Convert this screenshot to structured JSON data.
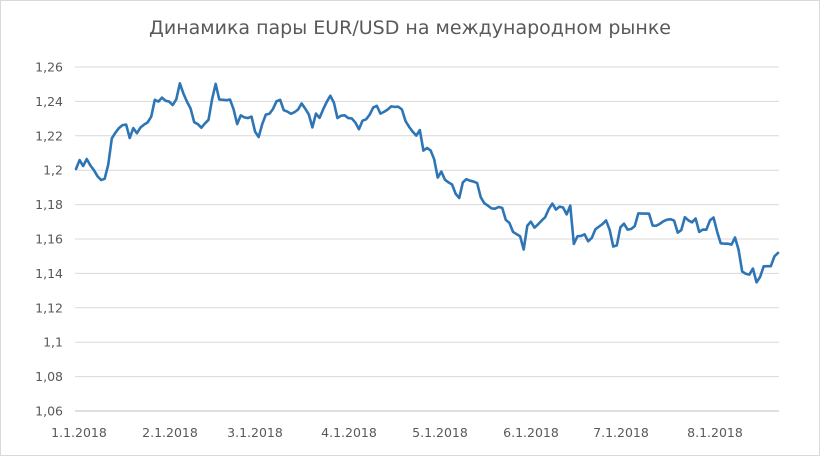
{
  "chart_data": {
    "type": "line",
    "title": "Динамика пары EUR/USD на международном рынке",
    "xlabel": "",
    "ylabel": "",
    "ylim": [
      1.06,
      1.26
    ],
    "y_ticks": [
      "1,26",
      "1,24",
      "1,22",
      "1,2",
      "1,18",
      "1,16",
      "1,14",
      "1,12",
      "1,1",
      "1,08",
      "1,06"
    ],
    "y_tick_values": [
      1.26,
      1.24,
      1.22,
      1.2,
      1.18,
      1.16,
      1.14,
      1.12,
      1.1,
      1.08,
      1.06
    ],
    "x_ticks": [
      "1.1.2018",
      "2.1.2018",
      "3.1.2018",
      "4.1.2018",
      "5.1.2018",
      "6.1.2018",
      "7.1.2018",
      "8.1.2018"
    ],
    "grid": "horizontal",
    "legend": "none",
    "line_color": "#2E75B6",
    "series": [
      {
        "values": [
          1.2007,
          1.2059,
          1.2024,
          1.2065,
          1.2028,
          1.2,
          1.1965,
          1.1943,
          1.195,
          1.2032,
          1.2185,
          1.2218,
          1.2245,
          1.2262,
          1.2265,
          1.2187,
          1.2245,
          1.2215,
          1.2248,
          1.2265,
          1.2278,
          1.2311,
          1.2409,
          1.2399,
          1.2422,
          1.2404,
          1.2399,
          1.2379,
          1.2412,
          1.2505,
          1.2445,
          1.2398,
          1.2358,
          1.2279,
          1.2268,
          1.2247,
          1.2272,
          1.2293,
          1.2413,
          1.2502,
          1.2411,
          1.2409,
          1.2407,
          1.2411,
          1.2354,
          1.2268,
          1.2319,
          1.2307,
          1.2303,
          1.2312,
          1.2224,
          1.2193,
          1.2268,
          1.2323,
          1.2328,
          1.2356,
          1.2401,
          1.2409,
          1.2349,
          1.2341,
          1.2328,
          1.2337,
          1.2353,
          1.2388,
          1.2358,
          1.2324,
          1.2249,
          1.2329,
          1.2304,
          1.2353,
          1.2397,
          1.2433,
          1.2393,
          1.2303,
          1.2317,
          1.2319,
          1.2303,
          1.2301,
          1.2277,
          1.2238,
          1.2288,
          1.2296,
          1.2323,
          1.2365,
          1.2374,
          1.2329,
          1.2339,
          1.2352,
          1.2371,
          1.2368,
          1.2369,
          1.2353,
          1.2286,
          1.2252,
          1.2224,
          1.2201,
          1.2233,
          1.2114,
          1.2129,
          1.2115,
          1.2064,
          1.1957,
          1.1992,
          1.1945,
          1.1929,
          1.1917,
          1.1863,
          1.1838,
          1.1929,
          1.1948,
          1.1939,
          1.1934,
          1.1925,
          1.1843,
          1.1808,
          1.1794,
          1.1778,
          1.1776,
          1.1786,
          1.1781,
          1.1711,
          1.1694,
          1.1642,
          1.1628,
          1.1616,
          1.1539,
          1.1677,
          1.1701,
          1.1666,
          1.1685,
          1.1707,
          1.1727,
          1.1774,
          1.1806,
          1.1771,
          1.1788,
          1.1783,
          1.1743,
          1.1794,
          1.1571,
          1.1616,
          1.1618,
          1.1627,
          1.1587,
          1.1606,
          1.1656,
          1.1672,
          1.1687,
          1.1708,
          1.1653,
          1.1556,
          1.1563,
          1.1668,
          1.1689,
          1.1655,
          1.1658,
          1.1675,
          1.1749,
          1.1748,
          1.1748,
          1.1747,
          1.1678,
          1.1677,
          1.1688,
          1.1703,
          1.1712,
          1.1715,
          1.1707,
          1.1637,
          1.1652,
          1.1727,
          1.1708,
          1.1697,
          1.1719,
          1.1641,
          1.1655,
          1.1654,
          1.1708,
          1.1725,
          1.1643,
          1.1575,
          1.1573,
          1.1573,
          1.1567,
          1.1609,
          1.1537,
          1.1411,
          1.1398,
          1.1393,
          1.1428,
          1.1348,
          1.1379,
          1.1441,
          1.1442,
          1.1442,
          1.1499,
          1.1519
        ]
      }
    ]
  }
}
